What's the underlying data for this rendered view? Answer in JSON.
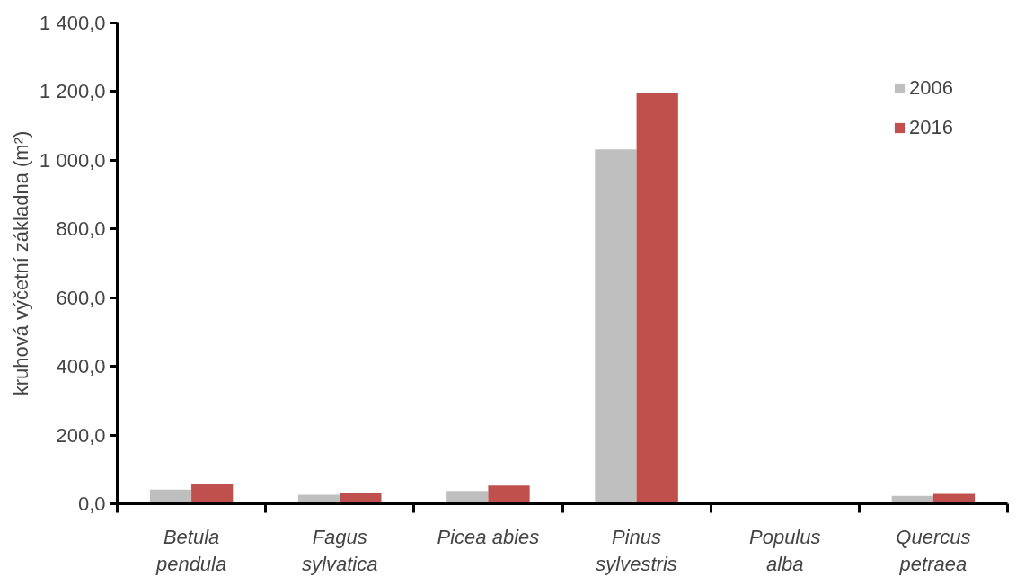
{
  "chart_data": {
    "type": "bar",
    "ylabel": "kruhová výčetní základna (m²)",
    "categories": [
      "Betula pendula",
      "Fagus sylvatica",
      "Picea abies",
      "Pinus sylvestris",
      "Populus alba",
      "Quercus petraea"
    ],
    "series": [
      {
        "name": "2006",
        "color": "#bfbfbf",
        "values": [
          41,
          26,
          37,
          1032,
          0,
          23
        ]
      },
      {
        "name": "2016",
        "color": "#c0504d",
        "values": [
          56,
          32,
          53,
          1197,
          0,
          29
        ]
      }
    ],
    "ylim": [
      0,
      1400
    ],
    "yticks": [
      {
        "value": 0,
        "label": "0,0"
      },
      {
        "value": 200,
        "label": "200,0"
      },
      {
        "value": 400,
        "label": "400,0"
      },
      {
        "value": 600,
        "label": "600,0"
      },
      {
        "value": 800,
        "label": "800,0"
      },
      {
        "value": 1000,
        "label": "1 000,0"
      },
      {
        "value": 1200,
        "label": "1 200,0"
      },
      {
        "value": 1400,
        "label": "1 400,0"
      }
    ],
    "grid": false,
    "legend": "top right"
  }
}
